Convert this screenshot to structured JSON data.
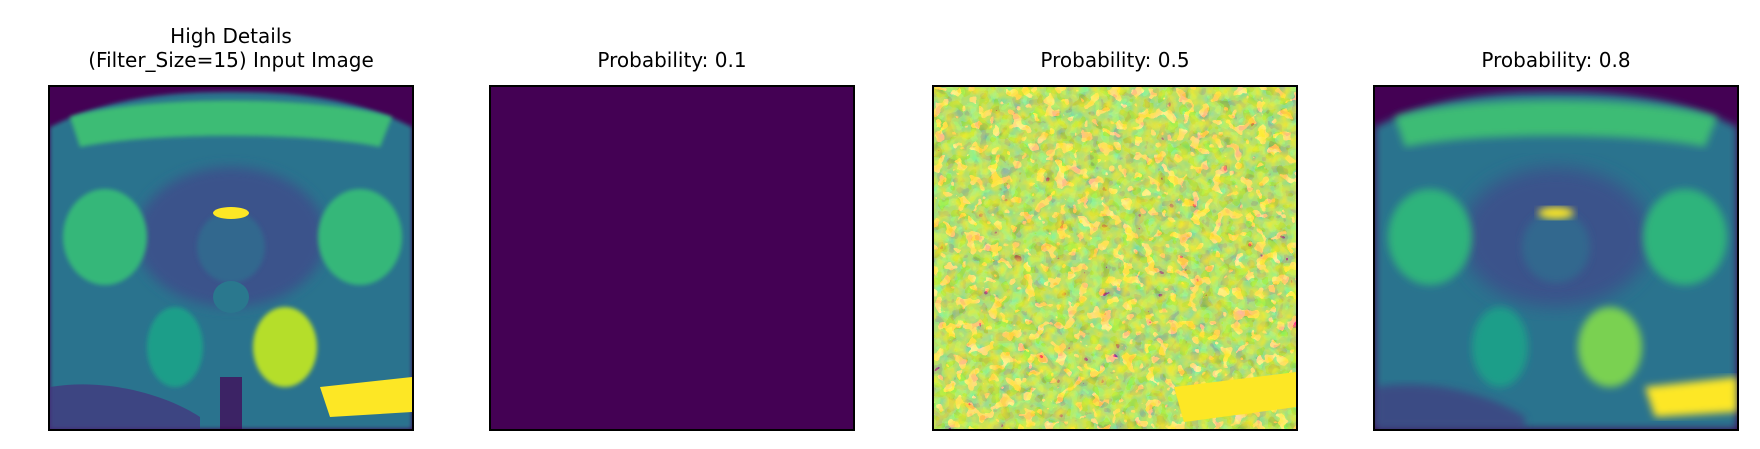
{
  "panels": [
    {
      "title_line1": "High Details",
      "title_line2": "(Filter_Size=15) Input Image",
      "image_icon": "mri-pelvis-scan-image"
    },
    {
      "title_line1": "Probability: 0.1",
      "title_line2": "",
      "image_icon": "uniform-dark-output-image"
    },
    {
      "title_line1": "Probability: 0.5",
      "title_line2": "",
      "image_icon": "noisy-speckle-output-image"
    },
    {
      "title_line1": "Probability: 0.8",
      "title_line2": "",
      "image_icon": "smoothed-mri-output-image"
    }
  ],
  "colors": {
    "viridis_dark": "#440154",
    "viridis_blue": "#31688e",
    "viridis_teal": "#21918c",
    "viridis_green": "#35b779",
    "viridis_yellow": "#fde725"
  }
}
